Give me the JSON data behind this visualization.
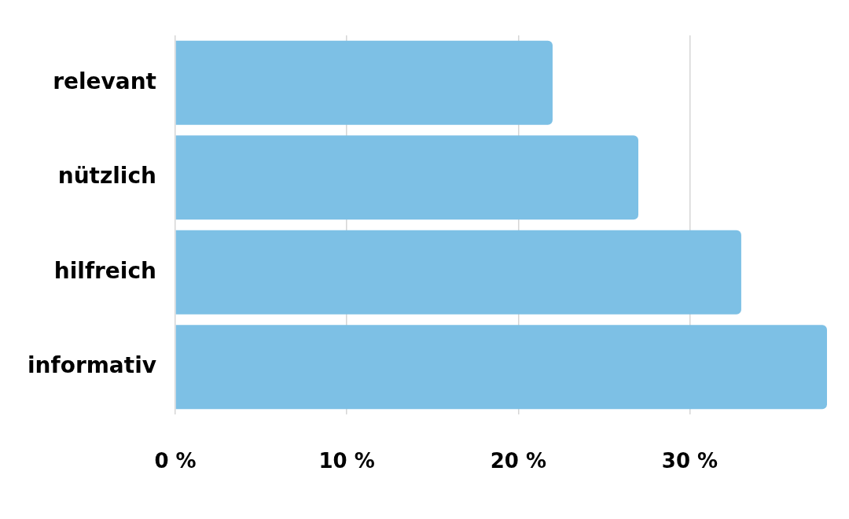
{
  "chart_data": {
    "type": "bar",
    "orientation": "horizontal",
    "categories": [
      "relevant",
      "nützlich",
      "hilfreich",
      "informativ"
    ],
    "values": [
      22,
      27,
      33,
      38
    ],
    "color": "#7dc0e5",
    "xlim": [
      0,
      38
    ],
    "xticks": [
      {
        "value": 0,
        "label": "0 %"
      },
      {
        "value": 10,
        "label": "10 %"
      },
      {
        "value": 20,
        "label": "20 %"
      },
      {
        "value": 30,
        "label": "30 %"
      }
    ],
    "grid": "x"
  }
}
